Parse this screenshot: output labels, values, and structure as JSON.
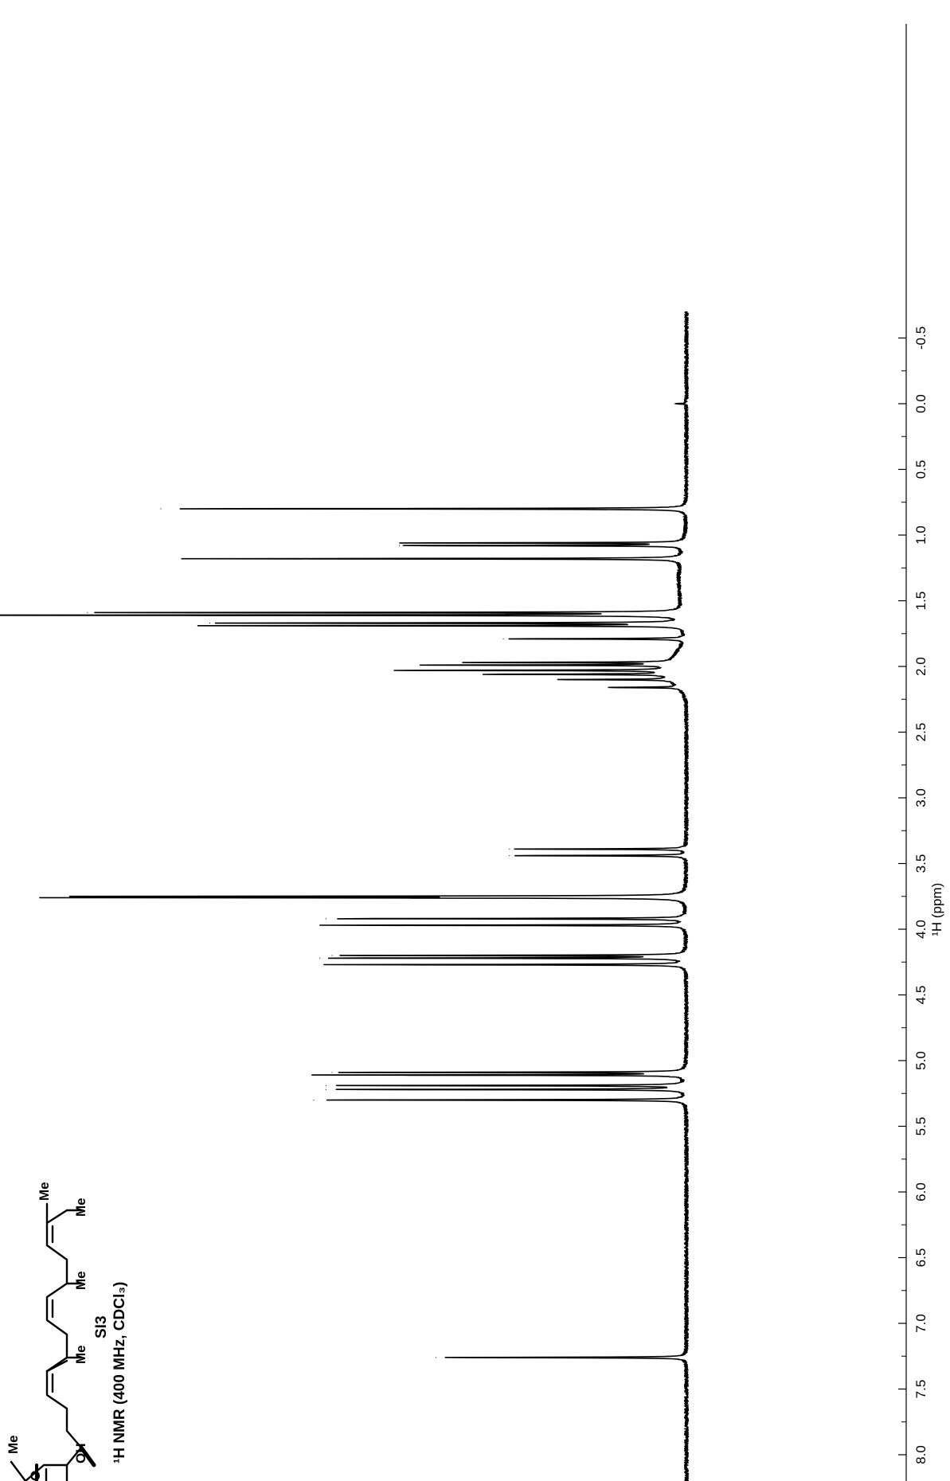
{
  "caption": {
    "compound": "SI3",
    "experiment": "¹H NMR (400 MHz, CDCl₃)"
  },
  "molecule_labels": {
    "me1": "Me",
    "me2": "Me",
    "me3": "Me",
    "me4": "Me",
    "me5": "Me",
    "oh": "OH",
    "o": "O"
  },
  "chart_data": {
    "type": "line",
    "title": "",
    "xlabel": "¹H (ppm)",
    "ylabel": "",
    "xlim": [
      8.35,
      -0.7
    ],
    "x_reversed": true,
    "orientation": "rotated-90",
    "ticks": [
      "8.0",
      "7.5",
      "7.0",
      "6.5",
      "6.0",
      "5.5",
      "5.0",
      "4.5",
      "4.0",
      "3.5",
      "3.0",
      "2.5",
      "2.0",
      "1.5",
      "1.0",
      "0.5",
      "0.0",
      "-0.5"
    ],
    "tick_values": [
      8.0,
      7.5,
      7.0,
      6.5,
      6.0,
      5.5,
      5.0,
      4.5,
      4.0,
      3.5,
      3.0,
      2.5,
      2.0,
      1.5,
      1.0,
      0.5,
      0.0,
      -0.5
    ],
    "minor_tick_values": [
      8.25,
      7.75,
      7.25,
      6.75,
      6.25,
      5.75,
      5.25,
      4.75,
      4.25,
      3.75,
      3.25,
      2.75,
      2.25,
      1.75,
      1.25,
      0.75,
      0.25,
      -0.25
    ],
    "grid": false,
    "legend": "none",
    "peaks": [
      {
        "ppm": 7.26,
        "intensity": 0.41
      },
      {
        "ppm": 5.3,
        "intensity": 0.61
      },
      {
        "ppm": 5.22,
        "intensity": 0.59
      },
      {
        "ppm": 5.19,
        "intensity": 0.59
      },
      {
        "ppm": 5.11,
        "intensity": 0.6
      },
      {
        "ppm": 5.09,
        "intensity": 0.58
      },
      {
        "ppm": 4.27,
        "intensity": 0.59
      },
      {
        "ppm": 4.22,
        "intensity": 0.6
      },
      {
        "ppm": 4.2,
        "intensity": 0.58
      },
      {
        "ppm": 3.97,
        "intensity": 0.6
      },
      {
        "ppm": 3.92,
        "intensity": 0.59
      },
      {
        "ppm": 3.76,
        "intensity": 1.0
      },
      {
        "ppm": 3.75,
        "intensity": 0.99
      },
      {
        "ppm": 3.44,
        "intensity": 0.29
      },
      {
        "ppm": 3.39,
        "intensity": 0.29
      },
      {
        "ppm": 2.16,
        "intensity": 0.12
      },
      {
        "ppm": 2.1,
        "intensity": 0.19
      },
      {
        "ppm": 2.06,
        "intensity": 0.31
      },
      {
        "ppm": 2.03,
        "intensity": 0.46
      },
      {
        "ppm": 1.99,
        "intensity": 0.4
      },
      {
        "ppm": 1.97,
        "intensity": 0.35
      },
      {
        "ppm": 1.79,
        "intensity": 0.3
      },
      {
        "ppm": 1.69,
        "intensity": 0.78
      },
      {
        "ppm": 1.67,
        "intensity": 0.78
      },
      {
        "ppm": 1.61,
        "intensity": 1.31
      },
      {
        "ppm": 1.59,
        "intensity": 0.98
      },
      {
        "ppm": 1.18,
        "intensity": 0.82
      },
      {
        "ppm": 1.08,
        "intensity": 0.47
      },
      {
        "ppm": 1.06,
        "intensity": 0.46
      },
      {
        "ppm": 0.8,
        "intensity": 0.86
      },
      {
        "ppm": 0.0,
        "intensity": 0.02
      }
    ]
  }
}
